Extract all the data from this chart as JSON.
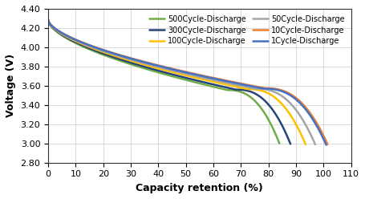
{
  "title": "",
  "xlabel": "Capacity retention (%)",
  "ylabel": "Voltage (V)",
  "xlim": [
    0,
    110
  ],
  "ylim": [
    2.8,
    4.4
  ],
  "xticks": [
    0,
    10,
    20,
    30,
    40,
    50,
    60,
    70,
    80,
    90,
    100,
    110
  ],
  "yticks": [
    2.8,
    3.0,
    3.2,
    3.4,
    3.6,
    3.8,
    4.0,
    4.2,
    4.4
  ],
  "series": [
    {
      "label": "1Cycle-Discharge",
      "color": "#4472C4",
      "end_x": 101.0
    },
    {
      "label": "10Cycle-Discharge",
      "color": "#ED7D31",
      "end_x": 101.5
    },
    {
      "label": "50Cycle-Discharge",
      "color": "#A5A5A5",
      "end_x": 97.0
    },
    {
      "label": "100Cycle-Discharge",
      "color": "#FFC000",
      "end_x": 93.5
    },
    {
      "label": "300Cycle-Discharge",
      "color": "#264478",
      "end_x": 88.0
    },
    {
      "label": "500Cycle-Discharge",
      "color": "#70AD47",
      "end_x": 84.0
    }
  ],
  "background_color": "#FFFFFF",
  "grid_color": "#CCCCCC",
  "legend_fontsize": 7,
  "axis_fontsize": 9,
  "tick_fontsize": 8
}
